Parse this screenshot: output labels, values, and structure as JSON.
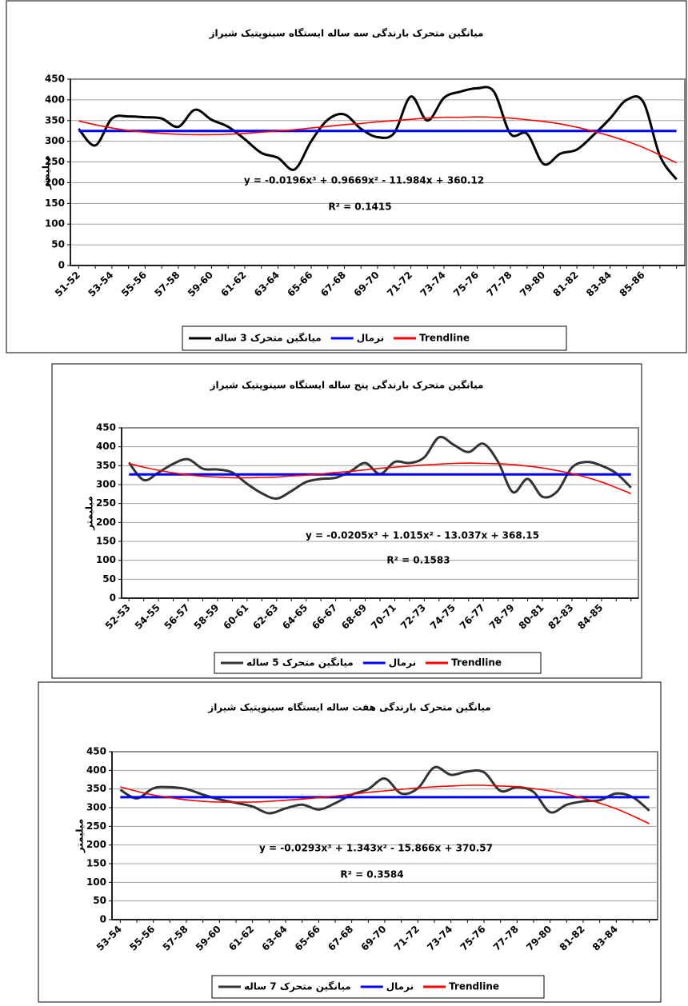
{
  "chart_data": [
    {
      "type": "line",
      "title": "میانگین متحرک بارندگی سه ساله ایستگاه سینوپتیک شیراز",
      "y_label": "میلیمتر",
      "categories": [
        "51-52",
        null,
        "53-54",
        null,
        "55-56",
        null,
        "57-58",
        null,
        "59-60",
        null,
        "61-62",
        null,
        "63-64",
        null,
        "65-66",
        null,
        "67-68",
        null,
        "69-70",
        null,
        "71-72",
        null,
        "73-74",
        null,
        "75-76",
        null,
        "77-78",
        null,
        "79-80",
        null,
        "81-82",
        null,
        "83-84",
        null,
        "85-86",
        null,
        null
      ],
      "series": [
        {
          "name": "میانگین متحرک 3 ساله",
          "color": "#000000",
          "values": [
            330,
            290,
            355,
            360,
            358,
            355,
            335,
            376,
            352,
            335,
            305,
            272,
            260,
            232,
            300,
            352,
            365,
            330,
            310,
            320,
            408,
            350,
            405,
            420,
            428,
            420,
            318,
            318,
            245,
            270,
            280,
            315,
            355,
            400,
            395,
            265,
            208
          ]
        },
        {
          "name": "نرمال",
          "color": "#0000ff",
          "values": [
            325,
            325,
            325,
            325,
            325,
            325,
            325,
            325,
            325,
            325,
            325,
            325,
            325,
            325,
            325,
            325,
            325,
            325,
            325,
            325,
            325,
            325,
            325,
            325,
            325,
            325,
            325,
            325,
            325,
            325,
            325,
            325,
            325,
            325,
            325,
            325,
            325
          ]
        },
        {
          "name": "Trendline",
          "color": "#ff0000",
          "values": [
            349,
            340,
            332,
            326,
            322,
            319,
            317,
            316,
            316,
            317,
            319,
            322,
            325,
            328,
            332,
            336,
            340,
            343,
            347,
            350,
            353,
            356,
            358,
            358,
            359,
            358,
            356,
            352,
            348,
            342,
            334,
            324,
            313,
            300,
            285,
            267,
            248
          ]
        }
      ],
      "ylim": [
        0,
        450
      ],
      "yticks": [
        0,
        50,
        100,
        150,
        200,
        250,
        300,
        350,
        400,
        450
      ],
      "grid": true,
      "legend": "bottom",
      "equation": "y = -0.0196x³ + 0.9669x² - 11.984x + 360.12",
      "r_squared": "R² = 0.1415"
    },
    {
      "type": "line",
      "title": "میانگین متحرک بارندگی پنج ساله ایستگاه سینوپتیک شیراز",
      "y_label": "میلیمتر",
      "categories": [
        "52-53",
        null,
        "54-55",
        null,
        "56-57",
        null,
        "58-59",
        null,
        "60-61",
        null,
        "62-63",
        null,
        "64-65",
        null,
        "66-67",
        null,
        "68-69",
        null,
        "70-71",
        null,
        "72-73",
        null,
        "74-75",
        null,
        "76-77",
        null,
        "78-79",
        null,
        "80-81",
        null,
        "82-83",
        null,
        "84-85",
        null,
        null
      ],
      "series": [
        {
          "name": "میانگین متحرک 5 ساله",
          "color": "#333333",
          "values": [
            358,
            312,
            332,
            355,
            367,
            342,
            340,
            332,
            302,
            277,
            263,
            283,
            307,
            315,
            318,
            335,
            357,
            328,
            360,
            357,
            372,
            425,
            405,
            386,
            408,
            360,
            280,
            315,
            268,
            282,
            345,
            360,
            350,
            330,
            292
          ]
        },
        {
          "name": "نرمال",
          "color": "#0000ff",
          "values": [
            327,
            327,
            327,
            327,
            327,
            327,
            327,
            327,
            327,
            327,
            327,
            327,
            327,
            327,
            327,
            327,
            327,
            327,
            327,
            327,
            327,
            327,
            327,
            327,
            327,
            327,
            327,
            327,
            327,
            327,
            327,
            327,
            327,
            327,
            327
          ]
        },
        {
          "name": "Trendline",
          "color": "#ff0000",
          "values": [
            356,
            346,
            338,
            331,
            326,
            322,
            320,
            318,
            318,
            319,
            320,
            323,
            325,
            328,
            332,
            335,
            339,
            343,
            346,
            349,
            352,
            354,
            356,
            357,
            356,
            355,
            353,
            349,
            344,
            337,
            329,
            319,
            307,
            292,
            276
          ]
        }
      ],
      "ylim": [
        0,
        450
      ],
      "yticks": [
        0,
        50,
        100,
        150,
        200,
        250,
        300,
        350,
        400,
        450
      ],
      "grid": true,
      "legend": "bottom",
      "equation": "y = -0.0205x³ + 1.015x² - 13.037x + 368.15",
      "r_squared": "R² = 0.1583"
    },
    {
      "type": "line",
      "title": "میانگین متحرک بارندگی هفت ساله ایستگاه سینوپتیک شیراز",
      "y_label": "میلیمتر",
      "categories": [
        "53-54",
        null,
        "55-56",
        null,
        "57-58",
        null,
        "59-60",
        null,
        "61-62",
        null,
        "63-64",
        null,
        "65-66",
        null,
        "67-68",
        null,
        "69-70",
        null,
        "71-72",
        null,
        "73-74",
        null,
        "75-76",
        null,
        "77-78",
        null,
        "79-80",
        null,
        "81-82",
        null,
        "83-84",
        null,
        null
      ],
      "series": [
        {
          "name": "میانگین متحرک 7 ساله",
          "color": "#333333",
          "values": [
            348,
            325,
            352,
            355,
            350,
            335,
            322,
            313,
            303,
            285,
            298,
            308,
            295,
            312,
            335,
            350,
            378,
            338,
            352,
            408,
            388,
            397,
            395,
            345,
            355,
            342,
            288,
            308,
            317,
            320,
            338,
            328,
            292
          ]
        },
        {
          "name": "نرمال",
          "color": "#0000ff",
          "values": [
            328,
            328,
            328,
            328,
            328,
            328,
            328,
            328,
            328,
            328,
            328,
            328,
            328,
            328,
            328,
            328,
            328,
            328,
            328,
            328,
            328,
            328,
            328,
            328,
            328,
            328,
            328,
            328,
            328,
            328,
            328,
            328,
            328
          ]
        },
        {
          "name": "Trendline",
          "color": "#ff0000",
          "values": [
            356,
            344,
            334,
            327,
            321,
            317,
            315,
            315,
            315,
            317,
            320,
            323,
            327,
            331,
            336,
            341,
            345,
            349,
            353,
            356,
            358,
            360,
            360,
            358,
            356,
            351,
            345,
            336,
            325,
            312,
            297,
            278,
            257
          ]
        }
      ],
      "ylim": [
        0,
        450
      ],
      "yticks": [
        0,
        50,
        100,
        150,
        200,
        250,
        300,
        350,
        400,
        450
      ],
      "grid": true,
      "legend": "bottom",
      "equation": "y = -0.0293x³ + 1.343x² - 15.866x + 370.57",
      "r_squared": "R² = 0.3584"
    }
  ]
}
